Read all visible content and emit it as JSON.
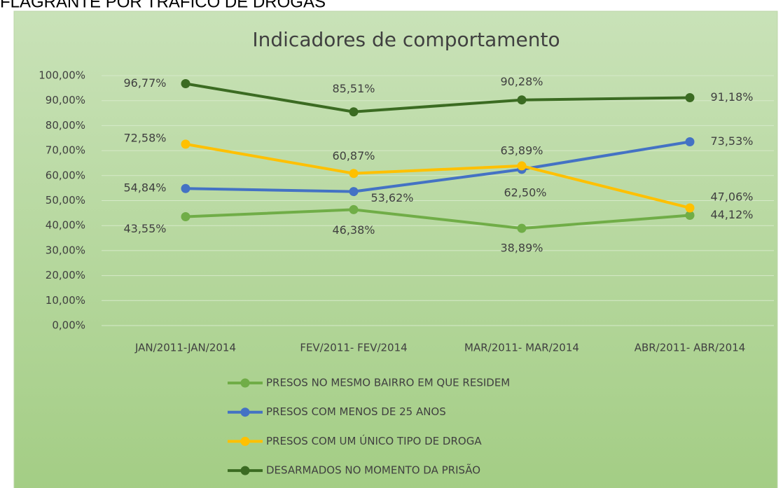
{
  "heading": "FLAGRANTE POR TRÁFICO DE DROGAS",
  "chart_data": {
    "type": "line",
    "title": "Indicadores de comportamento",
    "categories": [
      "JAN/2011-JAN/2014",
      "FEV/2011- FEV/2014",
      "MAR/2011- MAR/2014",
      "ABR/2011- ABR/2014"
    ],
    "series": [
      {
        "name": "PRESOS NO MESMO BAIRRO EM QUE RESIDEM",
        "color": "#70ad47",
        "values": [
          43.55,
          46.38,
          38.89,
          44.12
        ],
        "value_labels": [
          "43,55%",
          "46,38%",
          "38,89%",
          "44,12%"
        ]
      },
      {
        "name": "PRESOS COM MENOS DE 25 ANOS",
        "color": "#4472c4",
        "values": [
          54.84,
          53.62,
          62.5,
          73.53
        ],
        "value_labels": [
          "54,84%",
          "53,62%",
          "62,50%",
          "73,53%"
        ]
      },
      {
        "name": "PRESOS COM UM ÚNICO TIPO DE DROGA",
        "color": "#ffc000",
        "values": [
          72.58,
          60.87,
          63.89,
          47.06
        ],
        "value_labels": [
          "72,58%",
          "60,87%",
          "63,89%",
          "47,06%"
        ]
      },
      {
        "name": "DESARMADOS NO MOMENTO DA PRISÃO",
        "color": "#3b6b22",
        "values": [
          96.77,
          85.51,
          90.28,
          91.18
        ],
        "value_labels": [
          "96,77%",
          "85,51%",
          "90,28%",
          "91,18%"
        ]
      }
    ],
    "ylim": [
      0,
      100
    ],
    "yticks": [
      {
        "value": 0,
        "label": "0,00%"
      },
      {
        "value": 10,
        "label": "10,00%"
      },
      {
        "value": 20,
        "label": "20,00%"
      },
      {
        "value": 30,
        "label": "30,00%"
      },
      {
        "value": 40,
        "label": "40,00%"
      },
      {
        "value": 50,
        "label": "50,00%"
      },
      {
        "value": 60,
        "label": "60,00%"
      },
      {
        "value": 70,
        "label": "70,00%"
      },
      {
        "value": 80,
        "label": "80,00%"
      },
      {
        "value": 90,
        "label": "90,00%"
      },
      {
        "value": 100,
        "label": "100,00%"
      }
    ],
    "grid": true,
    "legend": "bottom"
  }
}
